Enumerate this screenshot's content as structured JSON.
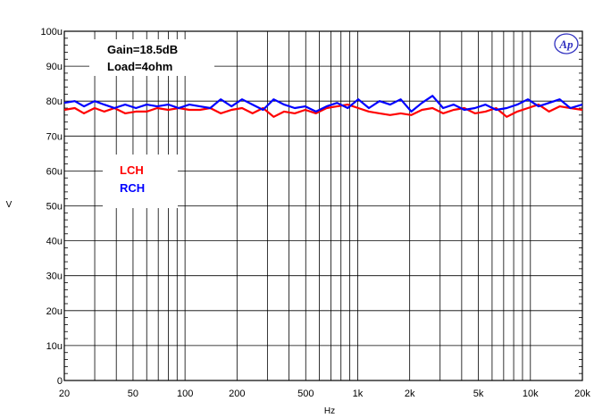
{
  "chart_data": {
    "type": "line",
    "xlabel": "Hz",
    "ylabel": "V",
    "x_scale": "log",
    "xlim": [
      20,
      20000
    ],
    "ylim": [
      0,
      100
    ],
    "grid": true,
    "x_tick_labels": [
      {
        "value": 20,
        "label": "20"
      },
      {
        "value": 50,
        "label": "50"
      },
      {
        "value": 100,
        "label": "100"
      },
      {
        "value": 200,
        "label": "200"
      },
      {
        "value": 500,
        "label": "500"
      },
      {
        "value": 1000,
        "label": "1k"
      },
      {
        "value": 2000,
        "label": "2k"
      },
      {
        "value": 5000,
        "label": "5k"
      },
      {
        "value": 10000,
        "label": "10k"
      },
      {
        "value": 20000,
        "label": "20k"
      }
    ],
    "y_tick_labels": [
      {
        "value": 0,
        "label": "0"
      },
      {
        "value": 10,
        "label": "10u"
      },
      {
        "value": 20,
        "label": "20u"
      },
      {
        "value": 30,
        "label": "30u"
      },
      {
        "value": 40,
        "label": "40u"
      },
      {
        "value": 50,
        "label": "50u"
      },
      {
        "value": 60,
        "label": "60u"
      },
      {
        "value": 70,
        "label": "70u"
      },
      {
        "value": 80,
        "label": "80u"
      },
      {
        "value": 90,
        "label": "90u"
      },
      {
        "value": 100,
        "label": "100u"
      }
    ],
    "annotations": {
      "gain": "Gain=18.5dB",
      "load": "Load=4ohm",
      "logo": "Ap"
    },
    "series": [
      {
        "name": "LCH",
        "color": "#ff0000",
        "x": [
          20,
          23,
          26,
          30,
          34,
          39,
          45,
          52,
          60,
          69,
          80,
          92,
          106,
          122,
          140,
          161,
          186,
          214,
          246,
          283,
          326,
          375,
          432,
          497,
          573,
          660,
          760,
          875,
          1008,
          1161,
          1337,
          1540,
          1774,
          2043,
          2354,
          2711,
          3122,
          3596,
          4142,
          4771,
          5495,
          6329,
          7290,
          8397,
          9672,
          11140,
          12831,
          14779,
          17023,
          20000
        ],
        "values": [
          77.5,
          78,
          76.5,
          78,
          77,
          78,
          76.5,
          77,
          77,
          78,
          77.5,
          78,
          77.5,
          77.5,
          78,
          76.5,
          77.5,
          78,
          76.5,
          78,
          75.5,
          77,
          76.5,
          77.5,
          76.5,
          78,
          78.5,
          79,
          78,
          77,
          76.5,
          76,
          76.5,
          76,
          77.5,
          78,
          76.5,
          77.5,
          78,
          76.5,
          77,
          78,
          75.5,
          77,
          78,
          79,
          77,
          78.5,
          78,
          77.5
        ]
      },
      {
        "name": "RCH",
        "color": "#0000ff",
        "x": [
          20,
          23,
          26,
          30,
          34,
          39,
          45,
          52,
          60,
          69,
          80,
          92,
          106,
          122,
          140,
          161,
          186,
          214,
          246,
          283,
          326,
          375,
          432,
          497,
          573,
          660,
          760,
          875,
          1008,
          1161,
          1337,
          1540,
          1774,
          2043,
          2354,
          2711,
          3122,
          3596,
          4142,
          4771,
          5495,
          6329,
          7290,
          8397,
          9672,
          11140,
          12831,
          14779,
          17023,
          20000
        ],
        "values": [
          79.5,
          80,
          78.5,
          80,
          79,
          78,
          79,
          78,
          79,
          78.5,
          79,
          78,
          79,
          78.5,
          78,
          80.5,
          78.5,
          80.5,
          79,
          77.5,
          80.5,
          79,
          78,
          78.5,
          77,
          78.5,
          79.5,
          78,
          80.5,
          78,
          80,
          79,
          80.5,
          77,
          79.5,
          81.5,
          78,
          79,
          77.5,
          78,
          79,
          77.5,
          78,
          79,
          80.5,
          78.5,
          79.5,
          80.5,
          78,
          79
        ]
      }
    ]
  }
}
